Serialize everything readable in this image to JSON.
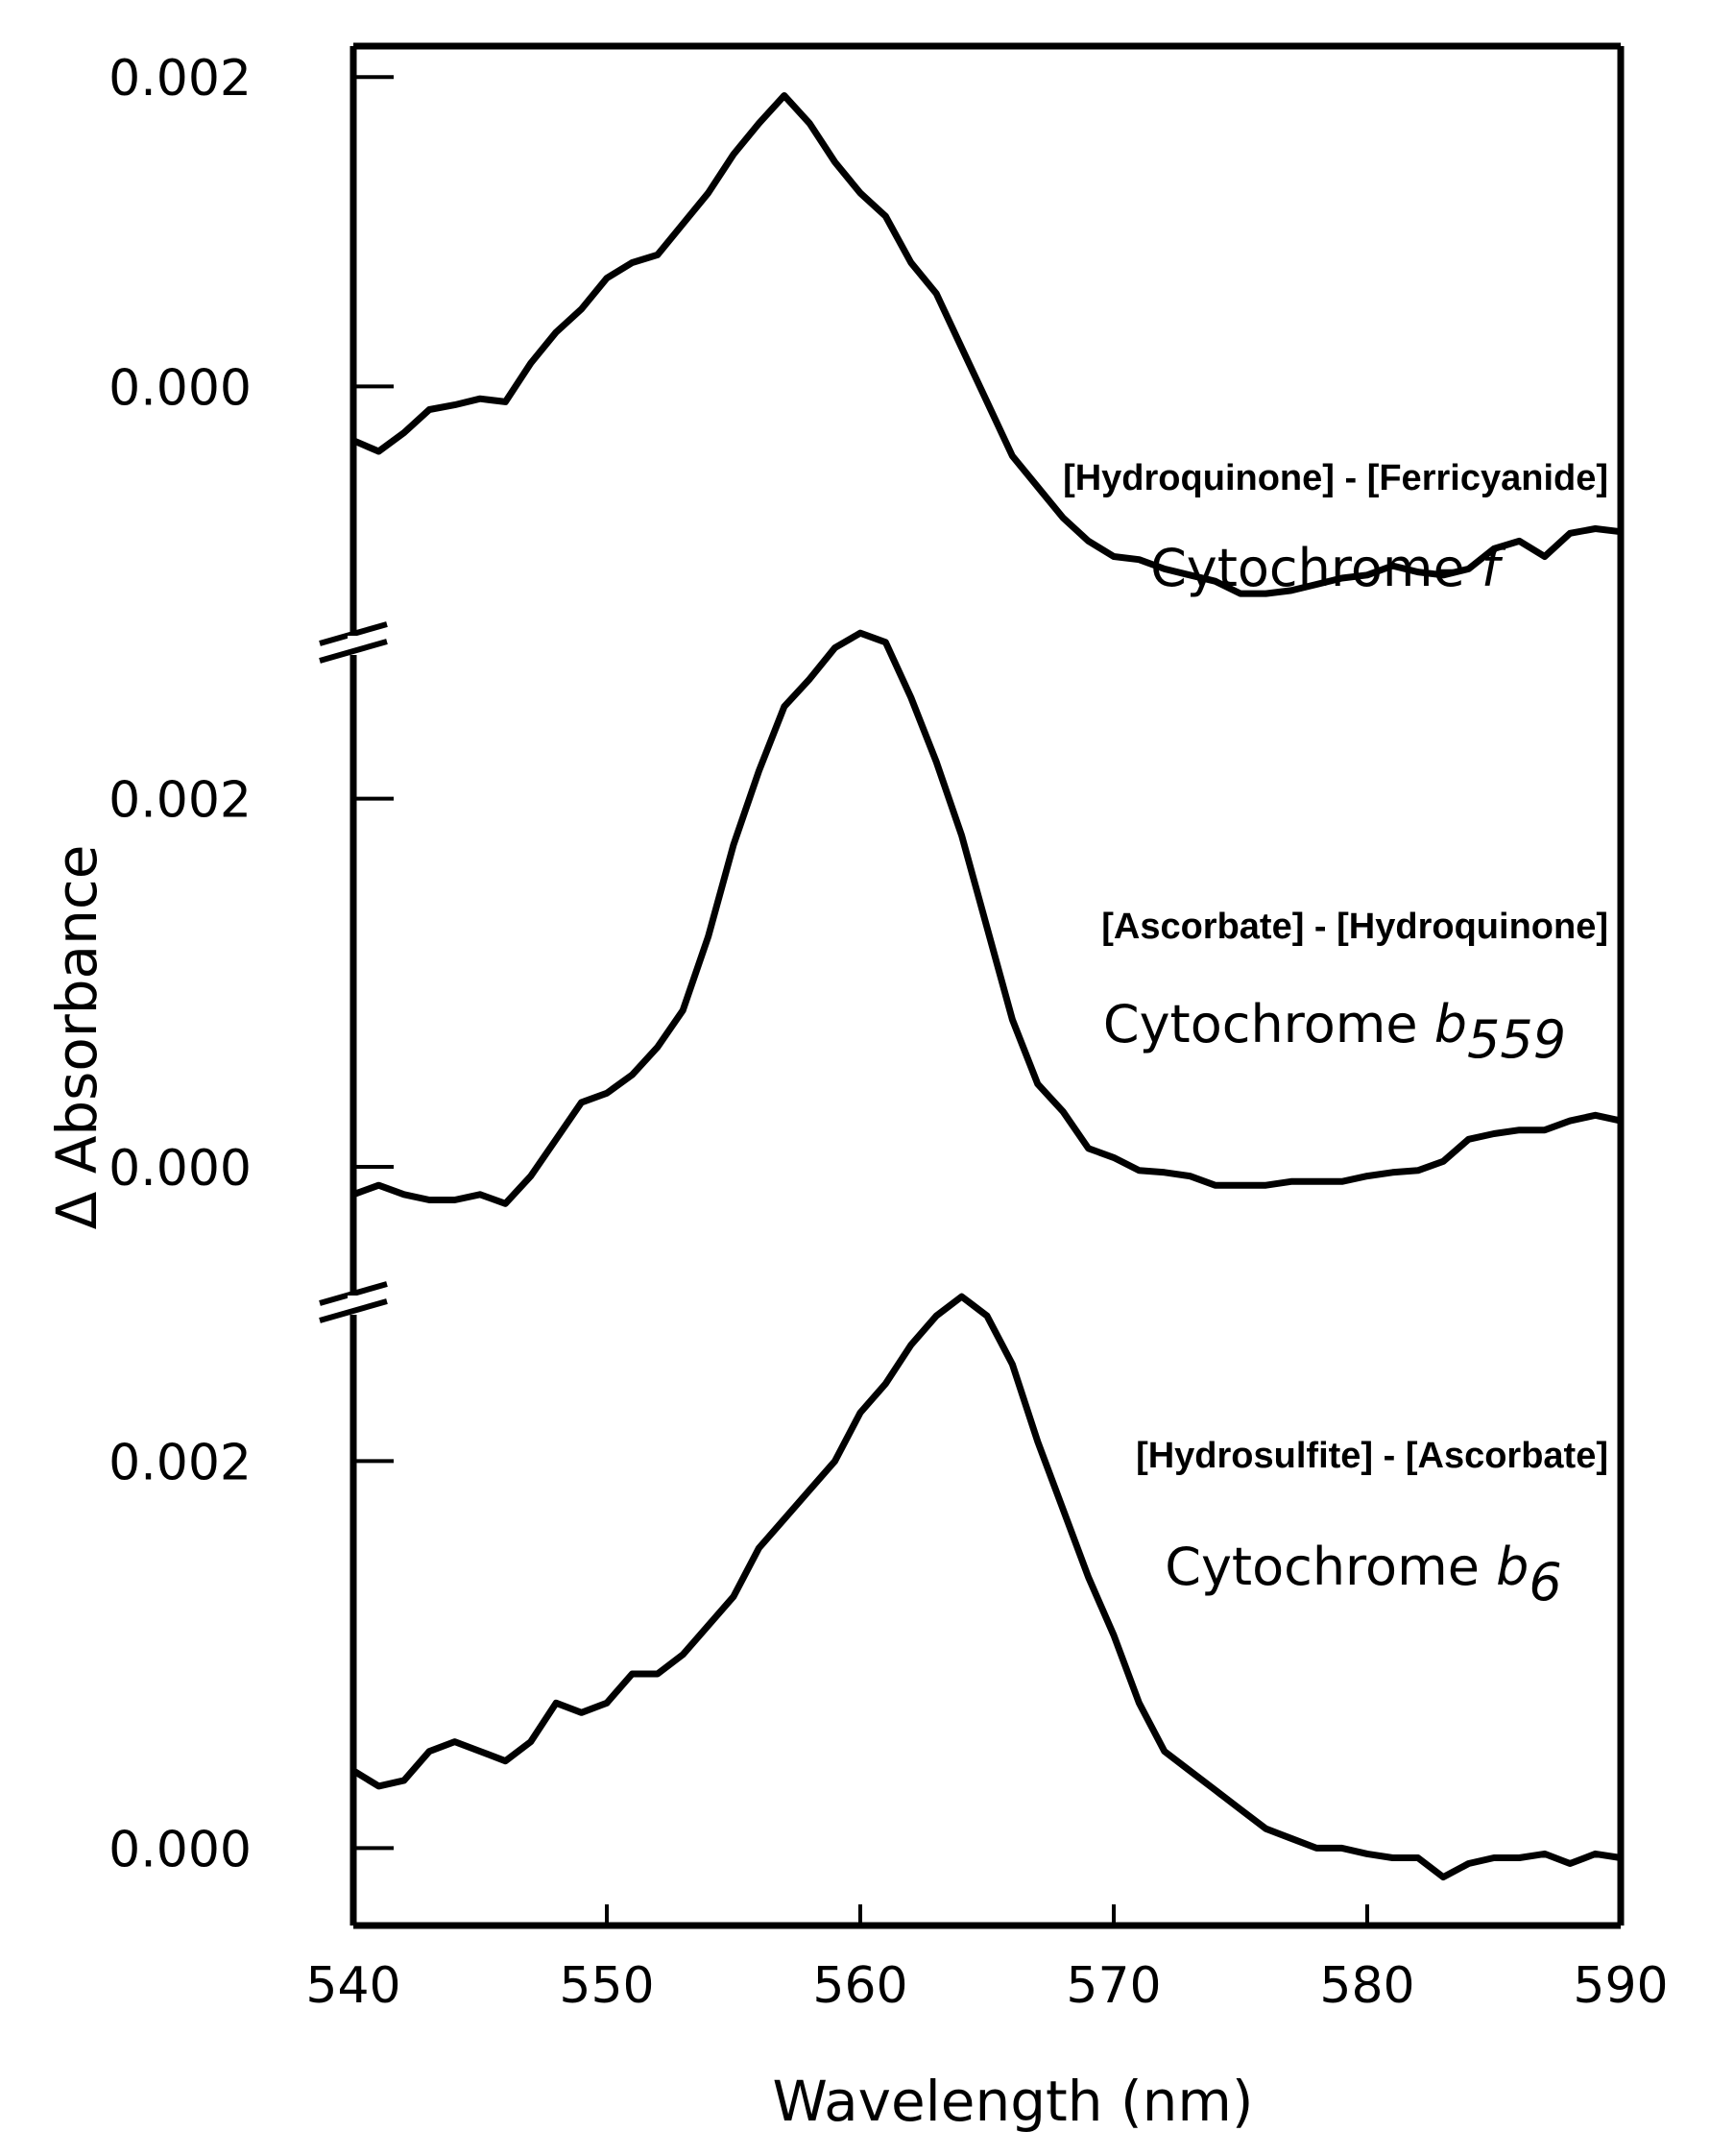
{
  "chart_data": {
    "type": "line",
    "xlabel": "Wavelength (nm)",
    "ylabel": "Δ Absorbance",
    "xlim": [
      540,
      590
    ],
    "x_ticks": [
      "540",
      "550",
      "560",
      "570",
      "580",
      "590"
    ],
    "axis_break": "broken y-axis between stacked panels",
    "panels": [
      {
        "name": "Cytochrome f",
        "name_main": "Cytochrome ",
        "name_italic": "f",
        "name_subscript": "",
        "condition": "[Hydroquinone] - [Ferricyanide]",
        "y_ticks": [
          "0.002",
          "0.000"
        ],
        "ylim": [
          -0.0016,
          0.0022
        ],
        "x": [
          540,
          541,
          542,
          543,
          544,
          545,
          546,
          547,
          548,
          549,
          550,
          551,
          552,
          553,
          554,
          555,
          556,
          557,
          558,
          559,
          560,
          561,
          562,
          563,
          564,
          565,
          566,
          567,
          568,
          569,
          570,
          571,
          572,
          573,
          574,
          575,
          576,
          577,
          578,
          579,
          580,
          581,
          582,
          583,
          584,
          585,
          586,
          587,
          588,
          589,
          590
        ],
        "y": [
          -0.00035,
          -0.00042,
          -0.0003,
          -0.00015,
          -0.00012,
          -8e-05,
          -0.0001,
          0.00015,
          0.00035,
          0.0005,
          0.0007,
          0.0008,
          0.00085,
          0.00105,
          0.00125,
          0.0015,
          0.0017,
          0.00188,
          0.0017,
          0.00145,
          0.00125,
          0.0011,
          0.0008,
          0.0006,
          0.00025,
          -0.0001,
          -0.00045,
          -0.00065,
          -0.00085,
          -0.001,
          -0.0011,
          -0.00112,
          -0.00118,
          -0.00122,
          -0.00126,
          -0.00134,
          -0.00134,
          -0.00132,
          -0.00128,
          -0.00124,
          -0.00122,
          -0.00116,
          -0.0012,
          -0.00122,
          -0.00118,
          -0.00105,
          -0.001,
          -0.0011,
          -0.00095,
          -0.00092,
          -0.00094
        ]
      },
      {
        "name": "Cytochrome b559",
        "name_main": "Cytochrome ",
        "name_italic": "b",
        "name_subscript": "559",
        "condition": "[Ascorbate] - [Hydroquinone]",
        "y_ticks": [
          "0.002",
          "0.000"
        ],
        "ylim": [
          -0.0006,
          0.003
        ],
        "x": [
          540,
          541,
          542,
          543,
          544,
          545,
          546,
          547,
          548,
          549,
          550,
          551,
          552,
          553,
          554,
          555,
          556,
          557,
          558,
          559,
          560,
          561,
          562,
          563,
          564,
          565,
          566,
          567,
          568,
          569,
          570,
          571,
          572,
          573,
          574,
          575,
          576,
          577,
          578,
          579,
          580,
          581,
          582,
          583,
          584,
          585,
          586,
          587,
          588,
          589,
          590
        ],
        "y": [
          -0.00015,
          -0.0001,
          -0.00015,
          -0.00018,
          -0.00018,
          -0.00015,
          -0.0002,
          -5e-05,
          0.00015,
          0.00035,
          0.0004,
          0.0005,
          0.00065,
          0.00085,
          0.00125,
          0.00175,
          0.00215,
          0.0025,
          0.00265,
          0.00282,
          0.0029,
          0.00285,
          0.00255,
          0.0022,
          0.0018,
          0.0013,
          0.0008,
          0.00045,
          0.0003,
          0.0001,
          5e-05,
          -2e-05,
          -3e-05,
          -5e-05,
          -0.0001,
          -0.0001,
          -0.0001,
          -8e-05,
          -8e-05,
          -8e-05,
          -5e-05,
          -3e-05,
          -2e-05,
          3e-05,
          0.00015,
          0.00018,
          0.0002,
          0.0002,
          0.00025,
          0.00028,
          0.00025
        ]
      },
      {
        "name": "Cytochrome b6",
        "name_main": "Cytochrome ",
        "name_italic": "b",
        "name_subscript": "6",
        "condition": "[Hydrosulfite] - [Ascorbate]",
        "y_ticks": [
          "0.002",
          "0.000"
        ],
        "ylim": [
          -0.0004,
          0.0029
        ],
        "x": [
          540,
          541,
          542,
          543,
          544,
          545,
          546,
          547,
          548,
          549,
          550,
          551,
          552,
          553,
          554,
          555,
          556,
          557,
          558,
          559,
          560,
          561,
          562,
          563,
          564,
          565,
          566,
          567,
          568,
          569,
          570,
          571,
          572,
          573,
          574,
          575,
          576,
          577,
          578,
          579,
          580,
          581,
          582,
          583,
          584,
          585,
          586,
          587,
          588,
          589,
          590
        ],
        "y": [
          0.0004,
          0.00032,
          0.00035,
          0.0005,
          0.00055,
          0.0005,
          0.00045,
          0.00055,
          0.00075,
          0.0007,
          0.00075,
          0.0009,
          0.0009,
          0.001,
          0.00115,
          0.0013,
          0.00155,
          0.0017,
          0.00185,
          0.002,
          0.00225,
          0.0024,
          0.0026,
          0.00275,
          0.00285,
          0.00275,
          0.0025,
          0.0021,
          0.00175,
          0.0014,
          0.0011,
          0.00075,
          0.0005,
          0.0004,
          0.0003,
          0.0002,
          0.0001,
          5e-05,
          0.0,
          0.0,
          -3e-05,
          -5e-05,
          -5e-05,
          -0.00015,
          -8e-05,
          -5e-05,
          -5e-05,
          -3e-05,
          -8e-05,
          -3e-05,
          -5e-05
        ]
      }
    ]
  }
}
